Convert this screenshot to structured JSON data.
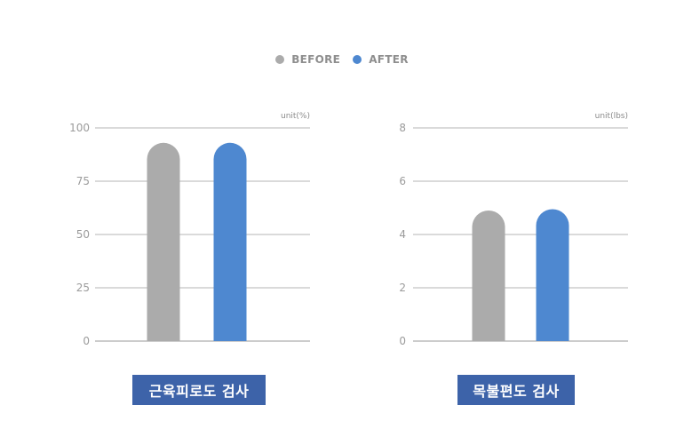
{
  "legend": [
    {
      "label": "BEFORE",
      "color": "#ababab"
    },
    {
      "label": "AFTER",
      "color": "#4e88d0"
    }
  ],
  "chart_data": [
    {
      "type": "bar",
      "title": "근육피로도 검사",
      "unit_label": "unit(%)",
      "categories": [
        "BEFORE",
        "AFTER"
      ],
      "values": [
        93,
        93
      ],
      "colors": [
        "#ababab",
        "#4e88d0"
      ],
      "ylim": [
        0,
        100
      ],
      "yticks": [
        "100",
        "75",
        "50",
        "25",
        "0"
      ],
      "tick_values": [
        100,
        75,
        50,
        25,
        0
      ],
      "grid": true
    },
    {
      "type": "bar",
      "title": "목불편도 검사",
      "unit_label": "unit(lbs)",
      "categories": [
        "BEFORE",
        "AFTER"
      ],
      "values": [
        4.9,
        4.95
      ],
      "colors": [
        "#ababab",
        "#4e88d0"
      ],
      "ylim": [
        0,
        8
      ],
      "yticks": [
        "8",
        "6",
        "4",
        "2",
        "0"
      ],
      "tick_values": [
        8,
        6,
        4,
        2,
        0
      ],
      "grid": true
    }
  ]
}
